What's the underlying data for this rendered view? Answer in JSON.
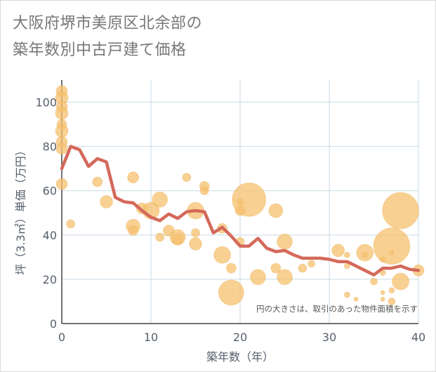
{
  "title_lines": [
    "大阪府堺市美原区北余部の",
    "築年数別中古戸建て価格"
  ],
  "note": "円の大きさは、取引のあった物件面積を示す",
  "colors": {
    "bubble": "#f5c06e",
    "bubble_edge": "#e8a84a",
    "line": "#d4695a",
    "grid": "#c9d9e4",
    "axis": "#444444",
    "text": "#555f6b"
  },
  "chart_data": {
    "type": "scatter",
    "xlabel": "築年数（年）",
    "ylabel": "坪（3.3㎡）単価（万円）",
    "xlim": [
      0,
      40
    ],
    "ylim": [
      0,
      110
    ],
    "xticks": [
      0,
      10,
      20,
      30,
      40
    ],
    "yticks": [
      0,
      20,
      40,
      60,
      80,
      100
    ],
    "grid": true,
    "bubbles": [
      {
        "x": 0,
        "y": 105,
        "size": 8
      },
      {
        "x": 0,
        "y": 102,
        "size": 9
      },
      {
        "x": 0,
        "y": 98,
        "size": 8
      },
      {
        "x": 0,
        "y": 95,
        "size": 9
      },
      {
        "x": 0,
        "y": 90,
        "size": 7
      },
      {
        "x": 0,
        "y": 87,
        "size": 9
      },
      {
        "x": 0,
        "y": 82,
        "size": 8
      },
      {
        "x": 0,
        "y": 79,
        "size": 8
      },
      {
        "x": 0,
        "y": 63,
        "size": 8
      },
      {
        "x": 1,
        "y": 45,
        "size": 6
      },
      {
        "x": 4,
        "y": 64,
        "size": 7
      },
      {
        "x": 5,
        "y": 55,
        "size": 9
      },
      {
        "x": 8,
        "y": 66,
        "size": 8
      },
      {
        "x": 8,
        "y": 44,
        "size": 10
      },
      {
        "x": 8,
        "y": 42,
        "size": 7
      },
      {
        "x": 9,
        "y": 52,
        "size": 8
      },
      {
        "x": 10,
        "y": 51,
        "size": 12
      },
      {
        "x": 11,
        "y": 56,
        "size": 11
      },
      {
        "x": 11,
        "y": 39,
        "size": 6
      },
      {
        "x": 12,
        "y": 42,
        "size": 8
      },
      {
        "x": 13,
        "y": 39,
        "size": 11
      },
      {
        "x": 13,
        "y": 38,
        "size": 8
      },
      {
        "x": 14,
        "y": 66,
        "size": 6
      },
      {
        "x": 15,
        "y": 51,
        "size": 12
      },
      {
        "x": 15,
        "y": 41,
        "size": 6
      },
      {
        "x": 15,
        "y": 36,
        "size": 9
      },
      {
        "x": 16,
        "y": 62,
        "size": 7
      },
      {
        "x": 16,
        "y": 60,
        "size": 6
      },
      {
        "x": 18,
        "y": 43,
        "size": 7
      },
      {
        "x": 18,
        "y": 31,
        "size": 12
      },
      {
        "x": 19,
        "y": 25,
        "size": 7
      },
      {
        "x": 19,
        "y": 14,
        "size": 18
      },
      {
        "x": 20,
        "y": 55,
        "size": 5
      },
      {
        "x": 20,
        "y": 51,
        "size": 7
      },
      {
        "x": 20,
        "y": 37,
        "size": 6
      },
      {
        "x": 21,
        "y": 56,
        "size": 24
      },
      {
        "x": 22,
        "y": 21,
        "size": 11
      },
      {
        "x": 24,
        "y": 51,
        "size": 10
      },
      {
        "x": 24,
        "y": 25,
        "size": 7
      },
      {
        "x": 25,
        "y": 37,
        "size": 11
      },
      {
        "x": 25,
        "y": 21,
        "size": 11
      },
      {
        "x": 27,
        "y": 25,
        "size": 6
      },
      {
        "x": 28,
        "y": 27,
        "size": 5
      },
      {
        "x": 31,
        "y": 33,
        "size": 9
      },
      {
        "x": 32,
        "y": 31,
        "size": 4
      },
      {
        "x": 32,
        "y": 26,
        "size": 4
      },
      {
        "x": 32,
        "y": 13,
        "size": 4
      },
      {
        "x": 33,
        "y": 11,
        "size": 3
      },
      {
        "x": 34,
        "y": 32,
        "size": 12
      },
      {
        "x": 34,
        "y": 31,
        "size": 4
      },
      {
        "x": 35,
        "y": 19,
        "size": 5
      },
      {
        "x": 36,
        "y": 29,
        "size": 4
      },
      {
        "x": 36,
        "y": 23,
        "size": 4
      },
      {
        "x": 36,
        "y": 14,
        "size": 3
      },
      {
        "x": 36,
        "y": 11,
        "size": 3
      },
      {
        "x": 37,
        "y": 35,
        "size": 26
      },
      {
        "x": 37,
        "y": 32,
        "size": 3
      },
      {
        "x": 37,
        "y": 15,
        "size": 4
      },
      {
        "x": 37,
        "y": 10,
        "size": 5
      },
      {
        "x": 38,
        "y": 51,
        "size": 26
      },
      {
        "x": 38,
        "y": 19,
        "size": 12
      },
      {
        "x": 40,
        "y": 24,
        "size": 8
      }
    ],
    "series": [
      {
        "type": "line",
        "x": [
          0,
          1,
          2,
          3,
          4,
          5,
          6,
          7,
          8,
          9,
          10,
          11,
          12,
          13,
          14,
          15,
          16,
          17,
          18,
          19,
          20,
          21,
          22,
          23,
          24,
          25,
          26,
          27,
          28,
          29,
          30,
          31,
          32,
          33,
          34,
          35,
          36,
          37,
          38,
          39,
          40
        ],
        "values": [
          70,
          80,
          78.5,
          71,
          74.5,
          73,
          57,
          55,
          54.5,
          51,
          48,
          46.5,
          49.5,
          47.5,
          50.5,
          51,
          50.5,
          41,
          43.5,
          39.5,
          35,
          35,
          38.5,
          34,
          32.5,
          33,
          31,
          29.5,
          29.5,
          29.5,
          29,
          28,
          28,
          26,
          24,
          22,
          25,
          25,
          26,
          24.5,
          24
        ]
      }
    ]
  }
}
